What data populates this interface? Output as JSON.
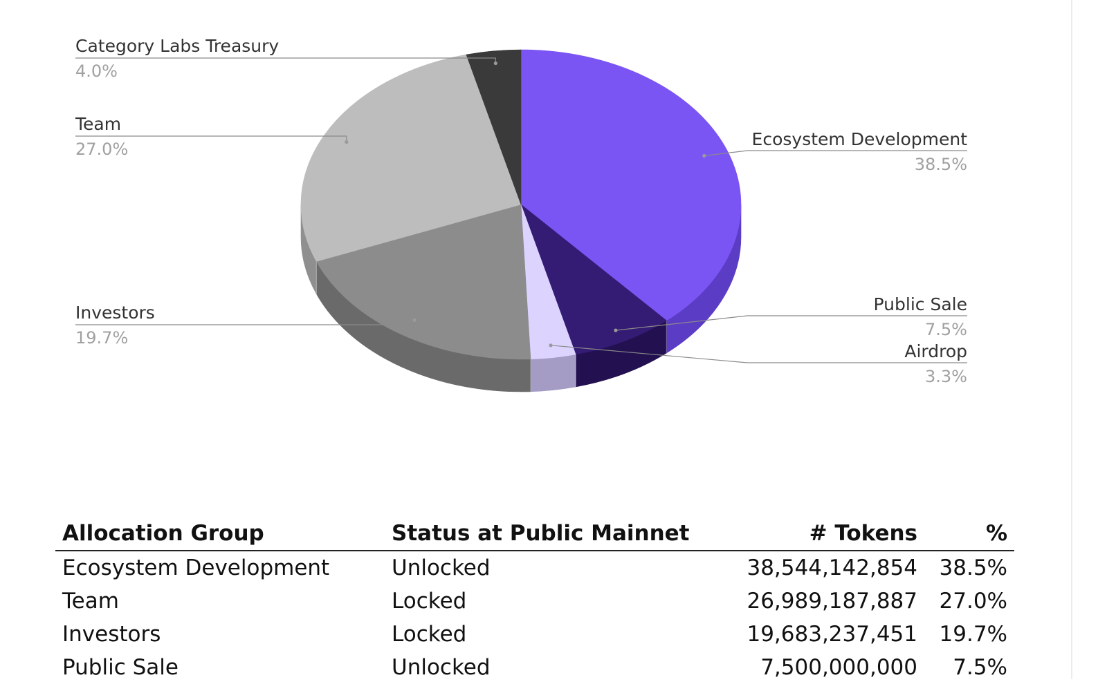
{
  "chart_data": {
    "type": "pie",
    "three_d": true,
    "slices": [
      {
        "label": "Ecosystem Development",
        "value": 38.5,
        "pct_label": "38.5%",
        "color": "#7b55f3",
        "side_color": "#5b3cc4",
        "label_side": "right"
      },
      {
        "label": "Public Sale",
        "value": 7.5,
        "pct_label": "7.5%",
        "color": "#341b73",
        "side_color": "#221050",
        "label_side": "right"
      },
      {
        "label": "Airdrop",
        "value": 3.3,
        "pct_label": "3.3%",
        "color": "#dcd4ff",
        "side_color": "#a49cc4",
        "label_side": "right"
      },
      {
        "label": "Investors",
        "value": 19.7,
        "pct_label": "19.7%",
        "color": "#8c8c8c",
        "side_color": "#6a6a6a",
        "label_side": "left"
      },
      {
        "label": "Team",
        "value": 27.0,
        "pct_label": "27.0%",
        "color": "#bdbdbd",
        "side_color": "#8f8f8f",
        "label_side": "left"
      },
      {
        "label": "Category Labs Treasury",
        "value": 4.0,
        "pct_label": "4.0%",
        "color": "#3a3a3a",
        "side_color": "#262626",
        "label_side": "left"
      }
    ]
  },
  "table": {
    "headers": {
      "group": "Allocation Group",
      "status": "Status at Public Mainnet",
      "tokens": "# Tokens",
      "pct": "%"
    },
    "rows": [
      {
        "group": "Ecosystem Development",
        "status": "Unlocked",
        "tokens": "38,544,142,854",
        "pct": "38.5%"
      },
      {
        "group": "Team",
        "status": "Locked",
        "tokens": "26,989,187,887",
        "pct": "27.0%"
      },
      {
        "group": "Investors",
        "status": "Locked",
        "tokens": "19,683,237,451",
        "pct": "19.7%"
      },
      {
        "group": "Public Sale",
        "status": "Unlocked",
        "tokens": "7,500,000,000",
        "pct": "7.5%"
      }
    ]
  }
}
